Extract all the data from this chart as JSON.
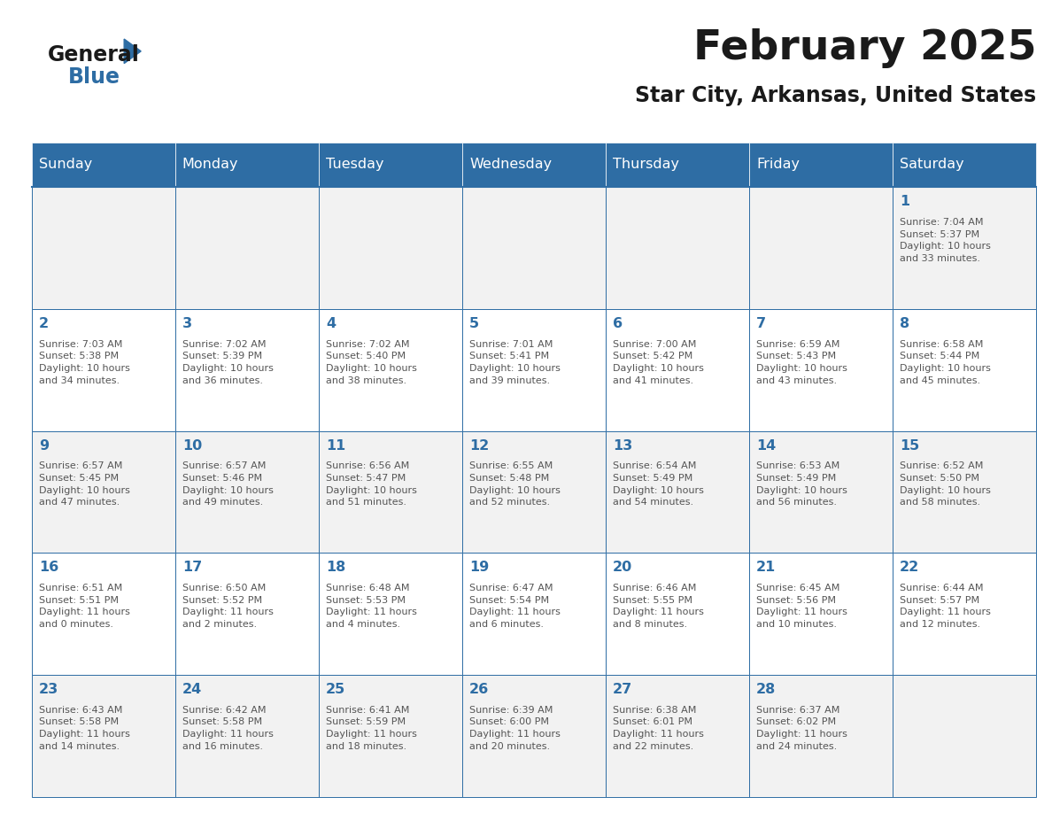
{
  "title": "February 2025",
  "subtitle": "Star City, Arkansas, United States",
  "header_bg": "#2E6DA4",
  "header_text_color": "#FFFFFF",
  "cell_bg_odd": "#F2F2F2",
  "cell_bg_even": "#FFFFFF",
  "cell_border_color": "#2E6DA4",
  "day_number_color": "#2E6DA4",
  "text_color": "#555555",
  "days_of_week": [
    "Sunday",
    "Monday",
    "Tuesday",
    "Wednesday",
    "Thursday",
    "Friday",
    "Saturday"
  ],
  "calendar_data": [
    [
      null,
      null,
      null,
      null,
      null,
      null,
      {
        "day": 1,
        "sunrise": "7:04 AM",
        "sunset": "5:37 PM",
        "daylight": "10 hours\nand 33 minutes."
      }
    ],
    [
      {
        "day": 2,
        "sunrise": "7:03 AM",
        "sunset": "5:38 PM",
        "daylight": "10 hours\nand 34 minutes."
      },
      {
        "day": 3,
        "sunrise": "7:02 AM",
        "sunset": "5:39 PM",
        "daylight": "10 hours\nand 36 minutes."
      },
      {
        "day": 4,
        "sunrise": "7:02 AM",
        "sunset": "5:40 PM",
        "daylight": "10 hours\nand 38 minutes."
      },
      {
        "day": 5,
        "sunrise": "7:01 AM",
        "sunset": "5:41 PM",
        "daylight": "10 hours\nand 39 minutes."
      },
      {
        "day": 6,
        "sunrise": "7:00 AM",
        "sunset": "5:42 PM",
        "daylight": "10 hours\nand 41 minutes."
      },
      {
        "day": 7,
        "sunrise": "6:59 AM",
        "sunset": "5:43 PM",
        "daylight": "10 hours\nand 43 minutes."
      },
      {
        "day": 8,
        "sunrise": "6:58 AM",
        "sunset": "5:44 PM",
        "daylight": "10 hours\nand 45 minutes."
      }
    ],
    [
      {
        "day": 9,
        "sunrise": "6:57 AM",
        "sunset": "5:45 PM",
        "daylight": "10 hours\nand 47 minutes."
      },
      {
        "day": 10,
        "sunrise": "6:57 AM",
        "sunset": "5:46 PM",
        "daylight": "10 hours\nand 49 minutes."
      },
      {
        "day": 11,
        "sunrise": "6:56 AM",
        "sunset": "5:47 PM",
        "daylight": "10 hours\nand 51 minutes."
      },
      {
        "day": 12,
        "sunrise": "6:55 AM",
        "sunset": "5:48 PM",
        "daylight": "10 hours\nand 52 minutes."
      },
      {
        "day": 13,
        "sunrise": "6:54 AM",
        "sunset": "5:49 PM",
        "daylight": "10 hours\nand 54 minutes."
      },
      {
        "day": 14,
        "sunrise": "6:53 AM",
        "sunset": "5:49 PM",
        "daylight": "10 hours\nand 56 minutes."
      },
      {
        "day": 15,
        "sunrise": "6:52 AM",
        "sunset": "5:50 PM",
        "daylight": "10 hours\nand 58 minutes."
      }
    ],
    [
      {
        "day": 16,
        "sunrise": "6:51 AM",
        "sunset": "5:51 PM",
        "daylight": "11 hours\nand 0 minutes."
      },
      {
        "day": 17,
        "sunrise": "6:50 AM",
        "sunset": "5:52 PM",
        "daylight": "11 hours\nand 2 minutes."
      },
      {
        "day": 18,
        "sunrise": "6:48 AM",
        "sunset": "5:53 PM",
        "daylight": "11 hours\nand 4 minutes."
      },
      {
        "day": 19,
        "sunrise": "6:47 AM",
        "sunset": "5:54 PM",
        "daylight": "11 hours\nand 6 minutes."
      },
      {
        "day": 20,
        "sunrise": "6:46 AM",
        "sunset": "5:55 PM",
        "daylight": "11 hours\nand 8 minutes."
      },
      {
        "day": 21,
        "sunrise": "6:45 AM",
        "sunset": "5:56 PM",
        "daylight": "11 hours\nand 10 minutes."
      },
      {
        "day": 22,
        "sunrise": "6:44 AM",
        "sunset": "5:57 PM",
        "daylight": "11 hours\nand 12 minutes."
      }
    ],
    [
      {
        "day": 23,
        "sunrise": "6:43 AM",
        "sunset": "5:58 PM",
        "daylight": "11 hours\nand 14 minutes."
      },
      {
        "day": 24,
        "sunrise": "6:42 AM",
        "sunset": "5:58 PM",
        "daylight": "11 hours\nand 16 minutes."
      },
      {
        "day": 25,
        "sunrise": "6:41 AM",
        "sunset": "5:59 PM",
        "daylight": "11 hours\nand 18 minutes."
      },
      {
        "day": 26,
        "sunrise": "6:39 AM",
        "sunset": "6:00 PM",
        "daylight": "11 hours\nand 20 minutes."
      },
      {
        "day": 27,
        "sunrise": "6:38 AM",
        "sunset": "6:01 PM",
        "daylight": "11 hours\nand 22 minutes."
      },
      {
        "day": 28,
        "sunrise": "6:37 AM",
        "sunset": "6:02 PM",
        "daylight": "11 hours\nand 24 minutes."
      },
      null
    ]
  ]
}
